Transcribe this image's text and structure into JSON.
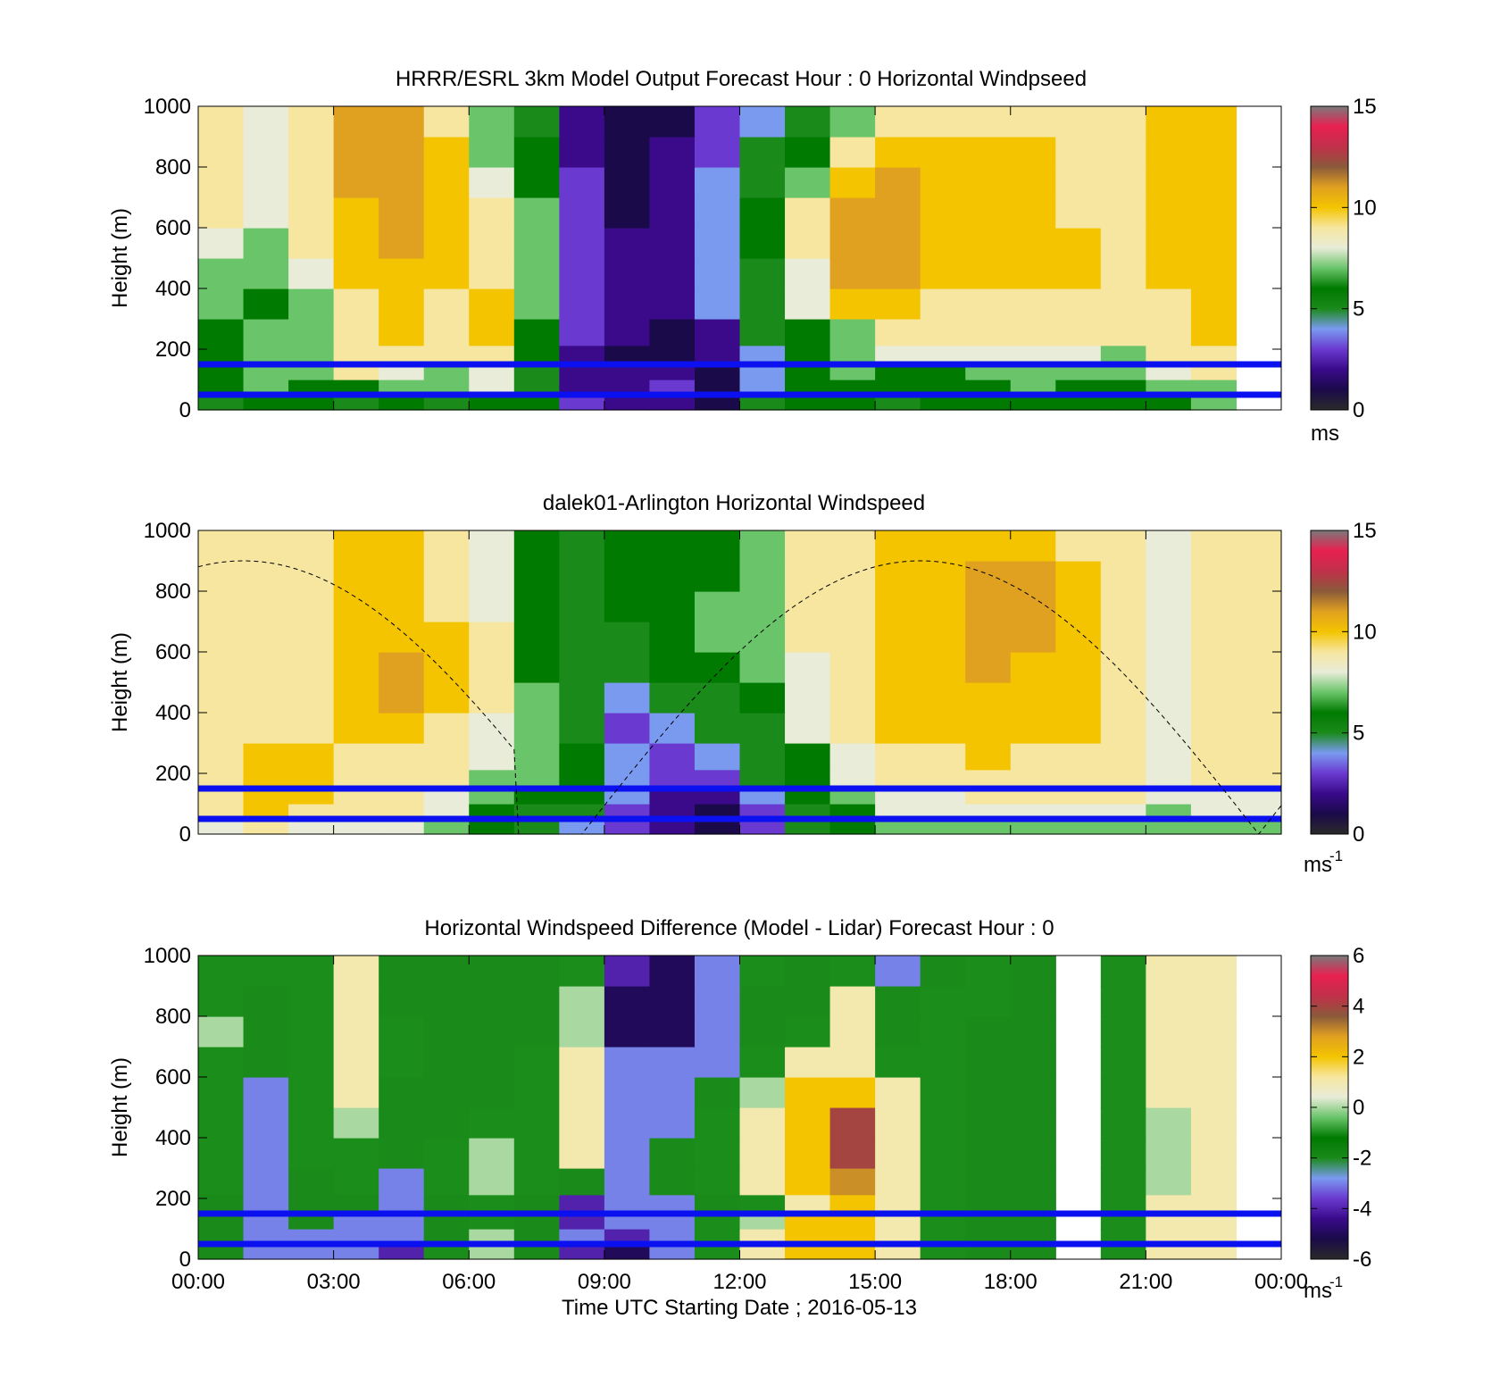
{
  "colorbar_colors": [
    "#2a2a2a",
    "#1a0a4a",
    "#3a0a8a",
    "#6a3ad0",
    "#7a9af0",
    "#1a8a1a",
    "#007a00",
    "#6ac46a",
    "#e8ecd8",
    "#f6e6a0",
    "#f4c400",
    "#e0a020",
    "#8a5a3a",
    "#c0304a",
    "#e82050",
    "#7a7a7a"
  ],
  "chart_data": [
    {
      "type": "heatmap",
      "title": "HRRR/ESRL 3km Model Output   Forecast Hour : 0 Horizontal Windpseed",
      "ylabel": "Height (m)",
      "xlabel": "",
      "x_ticks": [
        "00:00",
        "03:00",
        "06:00",
        "09:00",
        "12:00",
        "15:00",
        "18:00",
        "21:00",
        "00:00"
      ],
      "x_tick_labels_shown": false,
      "y_ticks": [
        "0",
        "200",
        "400",
        "600",
        "800",
        "1000"
      ],
      "ylim": [
        0,
        1000
      ],
      "xlim_hours": [
        0,
        24
      ],
      "colorbar": {
        "ticks": [
          "0",
          "5",
          "10",
          "15"
        ],
        "range": [
          0,
          15
        ],
        "unit": "ms"
      },
      "reference_lines_m": [
        50,
        150
      ],
      "x_hours": [
        0.5,
        1.5,
        2.5,
        3.5,
        4.5,
        5.5,
        6.5,
        7.5,
        8.5,
        9.5,
        10.5,
        11.5,
        12.5,
        13.5,
        14.5,
        15.5,
        16.5,
        17.5,
        18.5,
        19.5,
        20.5,
        21.5,
        22.5
      ],
      "profile_levels_m": [
        25,
        75,
        125,
        175,
        250,
        350,
        450,
        550,
        650,
        750,
        850,
        950
      ],
      "values": [
        [
          5,
          6,
          6,
          5,
          6,
          5,
          6,
          6,
          3,
          2,
          2,
          1,
          5,
          6,
          6,
          5,
          6,
          6,
          6,
          6,
          6,
          6,
          7
        ],
        [
          6,
          7,
          6,
          6,
          7,
          7,
          8,
          5,
          2,
          2,
          3,
          1,
          4,
          6,
          6,
          6,
          6,
          6,
          7,
          6,
          6,
          7,
          7
        ],
        [
          6,
          7,
          7,
          9,
          8,
          7,
          8,
          5,
          2,
          2,
          2,
          1,
          4,
          6,
          7,
          6,
          6,
          7,
          7,
          7,
          7,
          8,
          9
        ],
        [
          6,
          7,
          7,
          9,
          9,
          9,
          9,
          6,
          2,
          1,
          1,
          2,
          4,
          6,
          7,
          8,
          8,
          8,
          8,
          8,
          7,
          9,
          9
        ],
        [
          6,
          7,
          7,
          9,
          10,
          9,
          10,
          6,
          3,
          2,
          1,
          2,
          5,
          6,
          7,
          9,
          9,
          9,
          9,
          9,
          9,
          9,
          10
        ],
        [
          7,
          6,
          7,
          9,
          10,
          9,
          10,
          7,
          3,
          2,
          2,
          4,
          5,
          8,
          10,
          10,
          9,
          9,
          9,
          9,
          9,
          9,
          10
        ],
        [
          7,
          7,
          8,
          10,
          10,
          10,
          9,
          7,
          3,
          2,
          2,
          4,
          5,
          8,
          11,
          11,
          10,
          10,
          10,
          10,
          9,
          10,
          10
        ],
        [
          8,
          7,
          9,
          10,
          11,
          10,
          9,
          7,
          3,
          2,
          2,
          4,
          6,
          9,
          11,
          11,
          10,
          10,
          10,
          10,
          9,
          10,
          10
        ],
        [
          9,
          8,
          9,
          10,
          11,
          10,
          9,
          7,
          3,
          1,
          2,
          4,
          6,
          9,
          11,
          11,
          10,
          10,
          10,
          9,
          9,
          10,
          10
        ],
        [
          9,
          8,
          9,
          11,
          11,
          10,
          8,
          6,
          3,
          1,
          2,
          4,
          5,
          7,
          10,
          11,
          10,
          10,
          10,
          9,
          9,
          10,
          10
        ],
        [
          9,
          8,
          9,
          11,
          11,
          10,
          7,
          6,
          2,
          1,
          2,
          3,
          5,
          6,
          9,
          10,
          10,
          10,
          10,
          9,
          9,
          10,
          10
        ],
        [
          9,
          8,
          9,
          11,
          11,
          9,
          7,
          5,
          2,
          1,
          1,
          3,
          4,
          5,
          7,
          9,
          9,
          9,
          9,
          9,
          9,
          10,
          10
        ]
      ]
    },
    {
      "type": "heatmap",
      "title": "dalek01-Arlington  Horizontal Windspeed",
      "ylabel": "Height (m)",
      "xlabel": "",
      "x_ticks": [
        "00:00",
        "03:00",
        "06:00",
        "09:00",
        "12:00",
        "15:00",
        "18:00",
        "21:00",
        "00:00"
      ],
      "x_tick_labels_shown": false,
      "y_ticks": [
        "0",
        "200",
        "400",
        "600",
        "800",
        "1000"
      ],
      "ylim": [
        0,
        1000
      ],
      "xlim_hours": [
        0,
        24
      ],
      "colorbar": {
        "ticks": [
          "0",
          "5",
          "10",
          "15"
        ],
        "range": [
          0,
          15
        ],
        "unit": "ms",
        "unit_exponent": "-1"
      },
      "reference_lines_m": [
        50,
        150
      ],
      "dashed_curve": "solar elevation",
      "x_hours": [
        0.5,
        1.5,
        2.5,
        3.5,
        4.5,
        5.5,
        6.5,
        7.5,
        8.5,
        9.5,
        10.5,
        11.5,
        12.5,
        13.5,
        14.5,
        15.5,
        16.5,
        17.5,
        18.5,
        19.5,
        20.5,
        21.5,
        22.5,
        23.5
      ],
      "profile_levels_m": [
        25,
        75,
        125,
        175,
        250,
        350,
        450,
        550,
        650,
        750,
        850,
        950
      ],
      "values": [
        [
          8,
          9,
          8,
          8,
          8,
          7,
          6,
          5,
          4,
          3,
          2,
          1,
          3,
          5,
          6,
          7,
          7,
          7,
          7,
          7,
          7,
          7,
          7,
          7
        ],
        [
          9,
          10,
          9,
          9,
          9,
          8,
          6,
          5,
          5,
          3,
          2,
          1,
          3,
          5,
          6,
          8,
          8,
          8,
          8,
          8,
          8,
          7,
          8,
          8
        ],
        [
          9,
          10,
          10,
          9,
          9,
          8,
          7,
          6,
          6,
          4,
          2,
          2,
          4,
          6,
          7,
          8,
          8,
          9,
          9,
          9,
          9,
          8,
          8,
          8
        ],
        [
          9,
          10,
          10,
          9,
          9,
          9,
          7,
          7,
          6,
          4,
          3,
          3,
          5,
          6,
          8,
          9,
          9,
          9,
          9,
          9,
          9,
          8,
          9,
          9
        ],
        [
          9,
          10,
          10,
          9,
          9,
          9,
          8,
          7,
          6,
          4,
          3,
          4,
          5,
          6,
          8,
          9,
          9,
          10,
          9,
          9,
          9,
          8,
          9,
          9
        ],
        [
          9,
          9,
          9,
          10,
          10,
          9,
          8,
          7,
          5,
          3,
          4,
          5,
          5,
          8,
          9,
          10,
          10,
          10,
          10,
          10,
          9,
          8,
          9,
          9
        ],
        [
          9,
          9,
          9,
          10,
          11,
          10,
          9,
          7,
          5,
          4,
          5,
          5,
          6,
          8,
          9,
          10,
          10,
          10,
          10,
          10,
          9,
          8,
          9,
          9
        ],
        [
          9,
          9,
          9,
          10,
          11,
          10,
          9,
          6,
          5,
          5,
          6,
          6,
          7,
          8,
          9,
          10,
          10,
          11,
          10,
          10,
          9,
          8,
          9,
          9
        ],
        [
          9,
          9,
          9,
          10,
          10,
          10,
          9,
          6,
          5,
          5,
          6,
          7,
          7,
          9,
          9,
          10,
          10,
          11,
          11,
          10,
          9,
          8,
          9,
          9
        ],
        [
          9,
          9,
          9,
          10,
          10,
          9,
          8,
          6,
          5,
          6,
          6,
          7,
          7,
          9,
          9,
          10,
          10,
          11,
          11,
          10,
          9,
          8,
          9,
          9
        ],
        [
          9,
          9,
          9,
          10,
          10,
          9,
          8,
          6,
          5,
          6,
          6,
          6,
          7,
          9,
          9,
          10,
          10,
          11,
          11,
          10,
          9,
          8,
          9,
          9
        ],
        [
          9,
          9,
          9,
          10,
          10,
          9,
          8,
          6,
          5,
          6,
          6,
          6,
          7,
          9,
          9,
          10,
          10,
          10,
          10,
          9,
          9,
          8,
          9,
          9
        ]
      ]
    },
    {
      "type": "heatmap",
      "title": "Horizontal Windspeed Difference (Model - Lidar) Forecast Hour : 0",
      "ylabel": "Height (m)",
      "xlabel": "Time UTC  Starting Date ; 2016-05-13",
      "x_ticks": [
        "00:00",
        "03:00",
        "06:00",
        "09:00",
        "12:00",
        "15:00",
        "18:00",
        "21:00",
        "00:00"
      ],
      "x_tick_labels_shown": true,
      "y_ticks": [
        "0",
        "200",
        "400",
        "600",
        "800",
        "1000"
      ],
      "ylim": [
        0,
        1000
      ],
      "xlim_hours": [
        0,
        24
      ],
      "colorbar": {
        "ticks": [
          "-6",
          "-4",
          "-2",
          "0",
          "2",
          "4",
          "6"
        ],
        "range": [
          -6,
          6
        ],
        "unit": "ms",
        "unit_exponent": "-1"
      },
      "reference_lines_m": [
        50,
        150
      ],
      "x_hours": [
        0.5,
        1.5,
        2.5,
        3.5,
        4.5,
        5.5,
        6.5,
        7.5,
        8.5,
        9.5,
        10.5,
        11.5,
        12.5,
        13.5,
        14.5,
        15.5,
        16.5,
        17.5,
        18.5,
        19.5,
        20.5,
        21.5,
        22.5
      ],
      "profile_levels_m": [
        25,
        75,
        125,
        175,
        250,
        350,
        450,
        550,
        650,
        750,
        850,
        950
      ],
      "values": [
        [
          -2,
          -3,
          -3,
          -3,
          -4,
          -1,
          0,
          -2,
          -4,
          -5,
          -3,
          -1,
          1,
          2,
          2,
          1,
          -1,
          -2,
          -2,
          null,
          -1,
          1,
          1
        ],
        [
          -2,
          -3,
          -3,
          -3,
          -3,
          -2,
          0,
          -2,
          -3,
          -4,
          -3,
          -1,
          1,
          2,
          2,
          1,
          -1,
          -2,
          -2,
          null,
          -1,
          1,
          1
        ],
        [
          -2,
          -3,
          -2,
          -3,
          -3,
          -2,
          -1,
          -2,
          -4,
          -3,
          -3,
          -1,
          0,
          2,
          2,
          1,
          -1,
          -2,
          -2,
          null,
          -1,
          1,
          1
        ],
        [
          -2,
          -3,
          -2,
          -2,
          -3,
          -2,
          -1,
          -2,
          -4,
          -3,
          -3,
          -2,
          -1,
          1,
          2,
          1,
          -1,
          -2,
          -2,
          null,
          -1,
          1,
          1
        ],
        [
          -1,
          -3,
          -2,
          -1,
          -3,
          -1,
          0,
          -1,
          -2,
          -3,
          -2,
          -1,
          1,
          2,
          3,
          1,
          -1,
          -2,
          -2,
          null,
          -1,
          0,
          1
        ],
        [
          -1,
          -3,
          -1,
          -1,
          -2,
          -1,
          0,
          -1,
          1,
          -3,
          -2,
          -1,
          1,
          2,
          4,
          1,
          -1,
          -2,
          -2,
          null,
          -1,
          0,
          1
        ],
        [
          -1,
          -3,
          -1,
          0,
          -2,
          -2,
          -1,
          -1,
          1,
          -3,
          -3,
          -1,
          1,
          2,
          4,
          1,
          -1,
          -2,
          -2,
          null,
          -1,
          0,
          1
        ],
        [
          -1,
          -3,
          -1,
          1,
          -2,
          -2,
          -2,
          -1,
          1,
          -3,
          -3,
          -2,
          0,
          2,
          2,
          1,
          -1,
          -2,
          -2,
          null,
          -1,
          1,
          1
        ],
        [
          -1,
          -2,
          -1,
          1,
          -1,
          -2,
          -2,
          -1,
          1,
          -3,
          -3,
          -3,
          -1,
          1,
          1,
          -1,
          -1,
          -2,
          -2,
          null,
          -1,
          1,
          1
        ],
        [
          0,
          -2,
          -1,
          1,
          -1,
          -2,
          -2,
          -2,
          0,
          -5,
          -5,
          -3,
          -2,
          -1,
          1,
          -2,
          -1,
          -2,
          -2,
          null,
          -1,
          1,
          1
        ],
        [
          -1,
          -2,
          -1,
          1,
          -2,
          -2,
          -2,
          -2,
          0,
          -5,
          -5,
          -3,
          -2,
          -2,
          1,
          -2,
          -1,
          -1,
          -2,
          null,
          -1,
          1,
          1
        ],
        [
          -1,
          -1,
          -1,
          1,
          -2,
          -2,
          -2,
          -2,
          -1,
          -4,
          -5,
          -3,
          -1,
          -2,
          -1,
          -3,
          -2,
          -1,
          -2,
          null,
          -1,
          1,
          1
        ]
      ]
    }
  ]
}
